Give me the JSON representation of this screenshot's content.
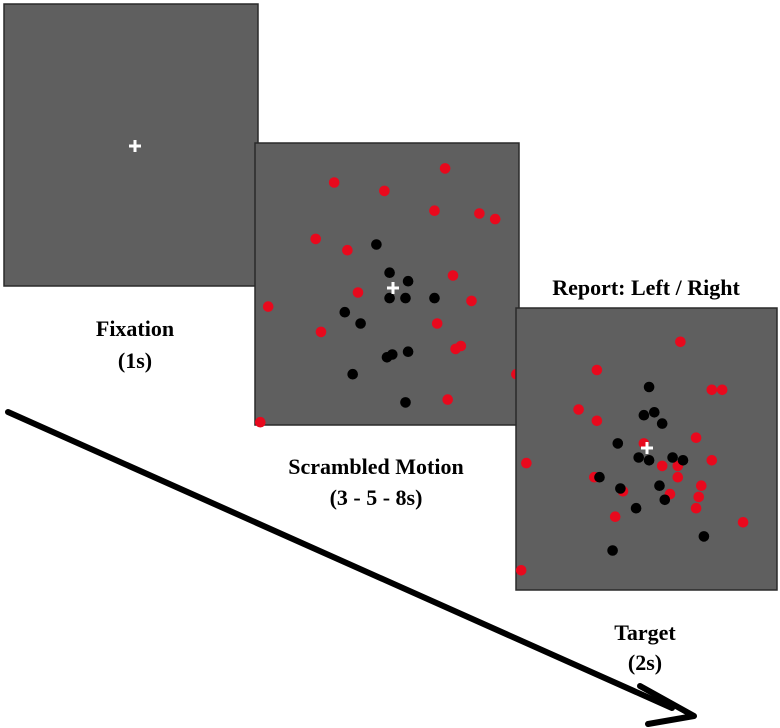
{
  "colors": {
    "panel_fill": "#5f5f5f",
    "panel_border": "#2a2a2a",
    "dot_red": "#e8091d",
    "dot_black": "#000000",
    "fixation_cross": "#ffffff",
    "arrow": "#000000"
  },
  "panels": [
    {
      "id": "fixation",
      "title": "Fixation",
      "duration": "(1s)",
      "header": "",
      "red_dots": [],
      "black_dots": []
    },
    {
      "id": "scrambled",
      "title": "Scrambled Motion",
      "duration": "(3 - 5 - 8s)",
      "header": "",
      "red_dots": [
        [
          0.3,
          0.14
        ],
        [
          0.49,
          0.17
        ],
        [
          0.72,
          0.09
        ],
        [
          0.68,
          0.24
        ],
        [
          0.85,
          0.25
        ],
        [
          0.91,
          0.27
        ],
        [
          0.23,
          0.34
        ],
        [
          0.35,
          0.38
        ],
        [
          0.75,
          0.47
        ],
        [
          0.39,
          0.53
        ],
        [
          0.82,
          0.56
        ],
        [
          0.05,
          0.58
        ],
        [
          0.69,
          0.64
        ],
        [
          0.25,
          0.67
        ],
        [
          0.78,
          0.72
        ],
        [
          0.76,
          0.73
        ],
        [
          0.99,
          0.82
        ],
        [
          0.73,
          0.91
        ],
        [
          0.02,
          0.99
        ]
      ],
      "black_dots": [
        [
          0.46,
          0.36
        ],
        [
          0.51,
          0.46
        ],
        [
          0.58,
          0.49
        ],
        [
          0.51,
          0.55
        ],
        [
          0.57,
          0.55
        ],
        [
          0.68,
          0.55
        ],
        [
          0.34,
          0.6
        ],
        [
          0.4,
          0.64
        ],
        [
          0.58,
          0.74
        ],
        [
          0.52,
          0.75
        ],
        [
          0.5,
          0.76
        ],
        [
          0.37,
          0.82
        ],
        [
          0.57,
          0.92
        ]
      ]
    },
    {
      "id": "target",
      "title": "Target",
      "duration": "(2s)",
      "header": "Report: Left / Right",
      "red_dots": [
        [
          0.63,
          0.12
        ],
        [
          0.31,
          0.22
        ],
        [
          0.75,
          0.29
        ],
        [
          0.79,
          0.29
        ],
        [
          0.24,
          0.36
        ],
        [
          0.31,
          0.4
        ],
        [
          0.69,
          0.46
        ],
        [
          0.49,
          0.48
        ],
        [
          0.75,
          0.54
        ],
        [
          0.04,
          0.55
        ],
        [
          0.56,
          0.56
        ],
        [
          0.62,
          0.56
        ],
        [
          0.62,
          0.6
        ],
        [
          0.3,
          0.6
        ],
        [
          0.71,
          0.63
        ],
        [
          0.41,
          0.65
        ],
        [
          0.7,
          0.67
        ],
        [
          0.59,
          0.66
        ],
        [
          0.69,
          0.71
        ],
        [
          0.38,
          0.74
        ],
        [
          0.87,
          0.76
        ],
        [
          0.02,
          0.93
        ]
      ],
      "black_dots": [
        [
          0.51,
          0.28
        ],
        [
          0.53,
          0.37
        ],
        [
          0.49,
          0.38
        ],
        [
          0.56,
          0.41
        ],
        [
          0.39,
          0.48
        ],
        [
          0.47,
          0.53
        ],
        [
          0.6,
          0.53
        ],
        [
          0.51,
          0.54
        ],
        [
          0.64,
          0.54
        ],
        [
          0.32,
          0.6
        ],
        [
          0.55,
          0.63
        ],
        [
          0.4,
          0.64
        ],
        [
          0.57,
          0.68
        ],
        [
          0.46,
          0.71
        ],
        [
          0.72,
          0.81
        ],
        [
          0.37,
          0.86
        ]
      ]
    }
  ]
}
